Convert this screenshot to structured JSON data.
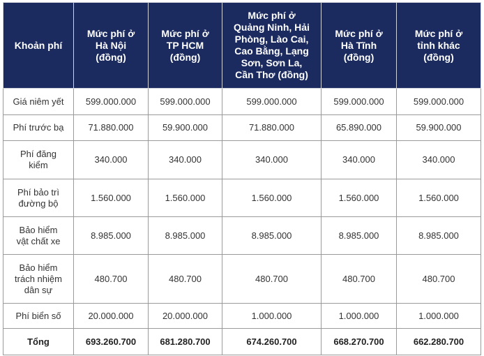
{
  "headers": [
    "Khoản phí",
    "Mức phí ở\nHà Nội\n(đồng)",
    "Mức phí ở\nTP HCM\n(đồng)",
    "Mức phí ở\nQuảng Ninh, Hải\nPhòng, Lào Cai,\nCao Bằng, Lạng\nSơn, Sơn La,\nCần Thơ (đồng)",
    "Mức phí ở\nHà Tĩnh\n(đồng)",
    "Mức phí ở\ntỉnh khác\n(đồng)"
  ],
  "rows": [
    {
      "label": "Giá niêm yết",
      "values": [
        "599.000.000",
        "599.000.000",
        "599.000.000",
        "599.000.000",
        "599.000.000"
      ]
    },
    {
      "label": "Phí trước bạ",
      "values": [
        "71.880.000",
        "59.900.000",
        "71.880.000",
        "65.890.000",
        "59.900.000"
      ]
    },
    {
      "label": "Phí đăng\nkiểm",
      "values": [
        "340.000",
        "340.000",
        "340.000",
        "340.000",
        "340.000"
      ]
    },
    {
      "label": "Phí bảo trì\nđường bộ",
      "values": [
        "1.560.000",
        "1.560.000",
        "1.560.000",
        "1.560.000",
        "1.560.000"
      ]
    },
    {
      "label": "Bảo hiểm\nvật chất xe",
      "values": [
        "8.985.000",
        "8.985.000",
        "8.985.000",
        "8.985.000",
        "8.985.000"
      ]
    },
    {
      "label": "Bảo hiểm\ntrách nhiệm\ndân sự",
      "values": [
        "480.700",
        "480.700",
        "480.700",
        "480.700",
        "480.700"
      ]
    },
    {
      "label": "Phí biển số",
      "values": [
        "20.000.000",
        "20.000.000",
        "1.000.000",
        "1.000.000",
        "1.000.000"
      ]
    },
    {
      "label": "Tổng",
      "values": [
        "693.260.700",
        "681.280.700",
        "674.260.700",
        "668.270.700",
        "662.280.700"
      ]
    }
  ],
  "colors": {
    "header_bg": "#1b2b5f",
    "header_text": "#ffffff",
    "border": "#9a9a9a"
  }
}
